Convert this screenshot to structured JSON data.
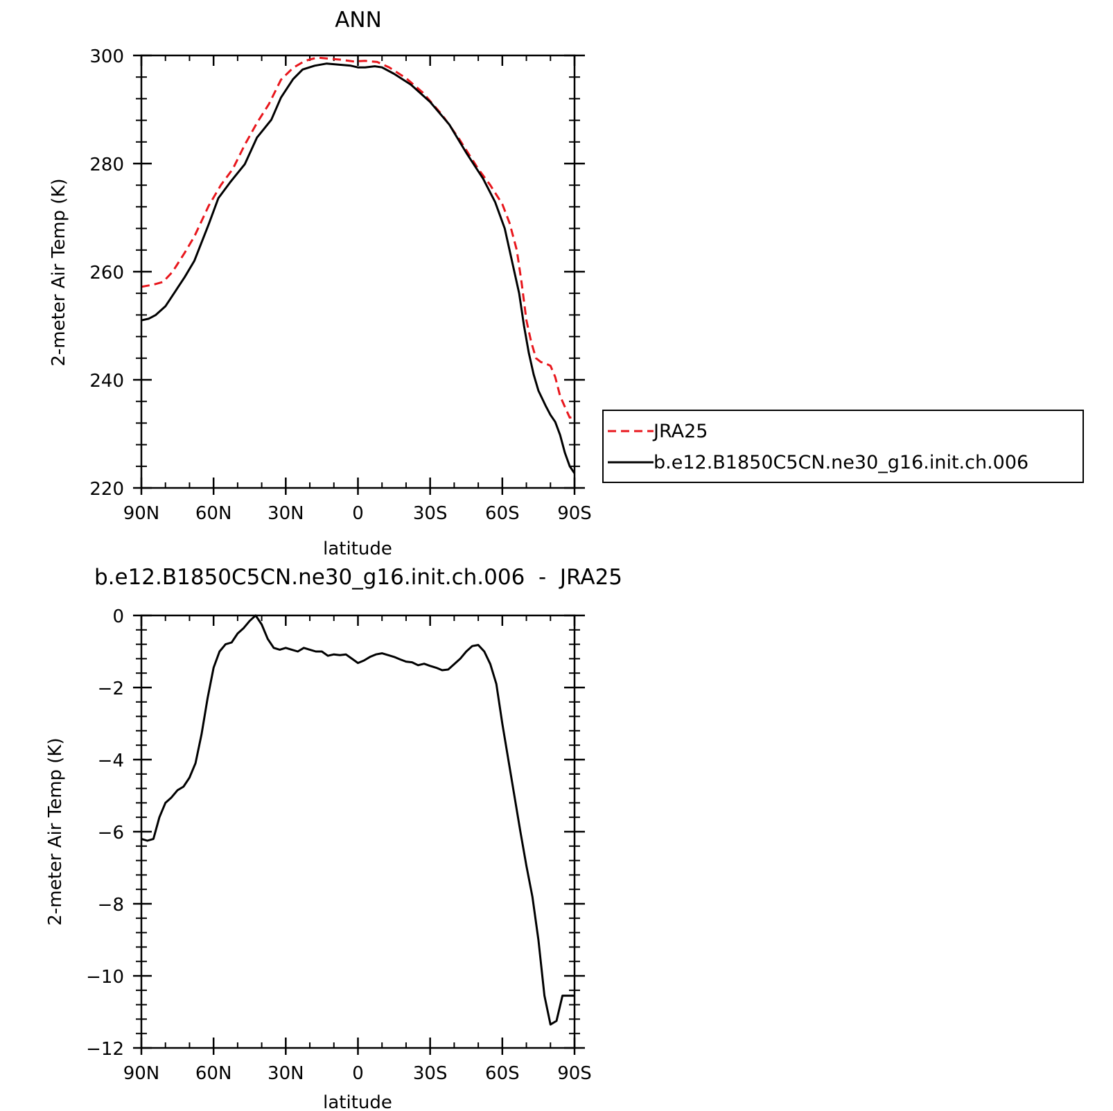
{
  "chart_data": [
    {
      "type": "line",
      "title": "ANN",
      "xlabel": "latitude",
      "ylabel": "2-meter Air Temp (K)",
      "xlim": [
        90,
        -90
      ],
      "ylim": [
        220,
        300
      ],
      "x_ticks": [
        {
          "value": 90,
          "label": "90N"
        },
        {
          "value": 60,
          "label": "60N"
        },
        {
          "value": 30,
          "label": "30N"
        },
        {
          "value": 0,
          "label": "0"
        },
        {
          "value": -30,
          "label": "30S"
        },
        {
          "value": -60,
          "label": "60S"
        },
        {
          "value": -90,
          "label": "90S"
        }
      ],
      "y_ticks": [
        {
          "value": 300,
          "label": "300"
        },
        {
          "value": 280,
          "label": "280"
        },
        {
          "value": 260,
          "label": "260"
        },
        {
          "value": 240,
          "label": "240"
        },
        {
          "value": 220,
          "label": "220"
        }
      ],
      "legend": {
        "placement": "right, outside plot"
      },
      "series": [
        {
          "name": "JRA25",
          "color": "#e8161c",
          "style": "dashed",
          "x": [
            90,
            85,
            81,
            77,
            72,
            68,
            62,
            57,
            52,
            47,
            42,
            37,
            32,
            27,
            22,
            17,
            12,
            7,
            2,
            -3,
            -8,
            -13,
            -20,
            -27,
            -35,
            -42,
            -50,
            -55,
            -60,
            -63,
            -66,
            -68,
            -70,
            -72,
            -74,
            -76,
            -78,
            -80,
            -82,
            -84,
            -86,
            -88,
            -90
          ],
          "y": [
            257.2,
            257.6,
            258.1,
            260.0,
            263.5,
            266.5,
            272.2,
            276.0,
            279.0,
            283.5,
            287.5,
            291.0,
            295.5,
            297.7,
            299.0,
            299.6,
            299.4,
            299.2,
            298.9,
            299.0,
            298.8,
            297.8,
            295.8,
            293.1,
            289.0,
            284.6,
            279.0,
            276.0,
            272.5,
            269.0,
            264.0,
            258.0,
            251.0,
            247.0,
            244.0,
            243.3,
            243.0,
            242.6,
            240.5,
            237.0,
            235.0,
            233.0,
            233.2
          ]
        },
        {
          "name": "b.e12.B1850C5CN.ne30_g16.init.ch.006",
          "color": "#000000",
          "style": "solid",
          "x": [
            90,
            87,
            84,
            80,
            76,
            72,
            68,
            62,
            58,
            53,
            47,
            42,
            36,
            32,
            27,
            23,
            18,
            13,
            8,
            3,
            0,
            -3,
            -7,
            -10,
            -15,
            -22,
            -30,
            -38,
            -45,
            -52,
            -57,
            -61,
            -64,
            -67,
            -69,
            -71,
            -73,
            -75,
            -78,
            -80,
            -82,
            -84,
            -86,
            -88,
            -90
          ],
          "y": [
            251.0,
            251.3,
            252.0,
            253.6,
            256.3,
            259.0,
            262.0,
            268.8,
            273.6,
            276.6,
            279.9,
            284.8,
            288.1,
            292.2,
            295.6,
            297.4,
            298.1,
            298.5,
            298.3,
            298.1,
            297.8,
            297.8,
            298.0,
            297.8,
            296.6,
            294.6,
            291.4,
            287.2,
            282.0,
            277.2,
            272.9,
            268.0,
            262.0,
            256.0,
            250.0,
            245.0,
            241.0,
            238.0,
            235.2,
            233.5,
            232.2,
            229.8,
            226.5,
            224.0,
            222.7
          ]
        }
      ]
    },
    {
      "type": "line",
      "title": "b.e12.B1850C5CN.ne30_g16.init.ch.006  -  JRA25",
      "xlabel": "latitude",
      "ylabel": "2-meter Air Temp (K)",
      "xlim": [
        90,
        -90
      ],
      "ylim": [
        -12,
        0
      ],
      "x_ticks": [
        {
          "value": 90,
          "label": "90N"
        },
        {
          "value": 60,
          "label": "60N"
        },
        {
          "value": 30,
          "label": "30N"
        },
        {
          "value": 0,
          "label": "0"
        },
        {
          "value": -30,
          "label": "30S"
        },
        {
          "value": -60,
          "label": "60S"
        },
        {
          "value": -90,
          "label": "90S"
        }
      ],
      "y_ticks": [
        {
          "value": 0,
          "label": "0"
        },
        {
          "value": -2,
          "label": "-2"
        },
        {
          "value": -4,
          "label": "-4"
        },
        {
          "value": -6,
          "label": "-6"
        },
        {
          "value": -8,
          "label": "-8"
        },
        {
          "value": -10,
          "label": "-10"
        },
        {
          "value": -12,
          "label": "-12"
        }
      ],
      "series": [
        {
          "color": "#000000",
          "style": "solid",
          "x": [
            90,
            87.5,
            85,
            82.5,
            80,
            77.5,
            75,
            72.5,
            70,
            67.5,
            65,
            62.5,
            60,
            57.5,
            55,
            52.5,
            50,
            47.5,
            45,
            42.5,
            40,
            37.5,
            35,
            32.5,
            30,
            27.5,
            25,
            22.5,
            20,
            17.5,
            15,
            12.5,
            10,
            7.5,
            5,
            2.5,
            0,
            -2.5,
            -5,
            -7.5,
            -10,
            -12.5,
            -15,
            -17.5,
            -20,
            -22.5,
            -25,
            -27.5,
            -30,
            -32.5,
            -35,
            -37.5,
            -40,
            -42.5,
            -45,
            -47.5,
            -50,
            -52.5,
            -55,
            -57.5,
            -60,
            -62.5,
            -65,
            -67.5,
            -70,
            -72.5,
            -75,
            -77.5,
            -80,
            -82.5,
            -85,
            -87.5,
            -90
          ],
          "y": [
            -6.2,
            -6.25,
            -6.2,
            -5.6,
            -5.2,
            -5.05,
            -4.85,
            -4.75,
            -4.5,
            -4.1,
            -3.3,
            -2.3,
            -1.45,
            -1.0,
            -0.8,
            -0.75,
            -0.5,
            -0.35,
            -0.15,
            0.0,
            -0.25,
            -0.65,
            -0.9,
            -0.95,
            -0.9,
            -0.95,
            -1.0,
            -0.9,
            -0.95,
            -1.0,
            -1.0,
            -1.12,
            -1.08,
            -1.1,
            -1.08,
            -1.2,
            -1.32,
            -1.25,
            -1.15,
            -1.08,
            -1.05,
            -1.1,
            -1.15,
            -1.22,
            -1.28,
            -1.3,
            -1.38,
            -1.34,
            -1.4,
            -1.45,
            -1.52,
            -1.5,
            -1.35,
            -1.2,
            -1.0,
            -0.85,
            -0.82,
            -1.0,
            -1.35,
            -1.9,
            -3.0,
            -4.0,
            -5.0,
            -6.0,
            -6.95,
            -7.8,
            -9.0,
            -10.55,
            -11.35,
            -11.25,
            -10.55,
            -10.55,
            -10.55
          ]
        }
      ]
    }
  ]
}
